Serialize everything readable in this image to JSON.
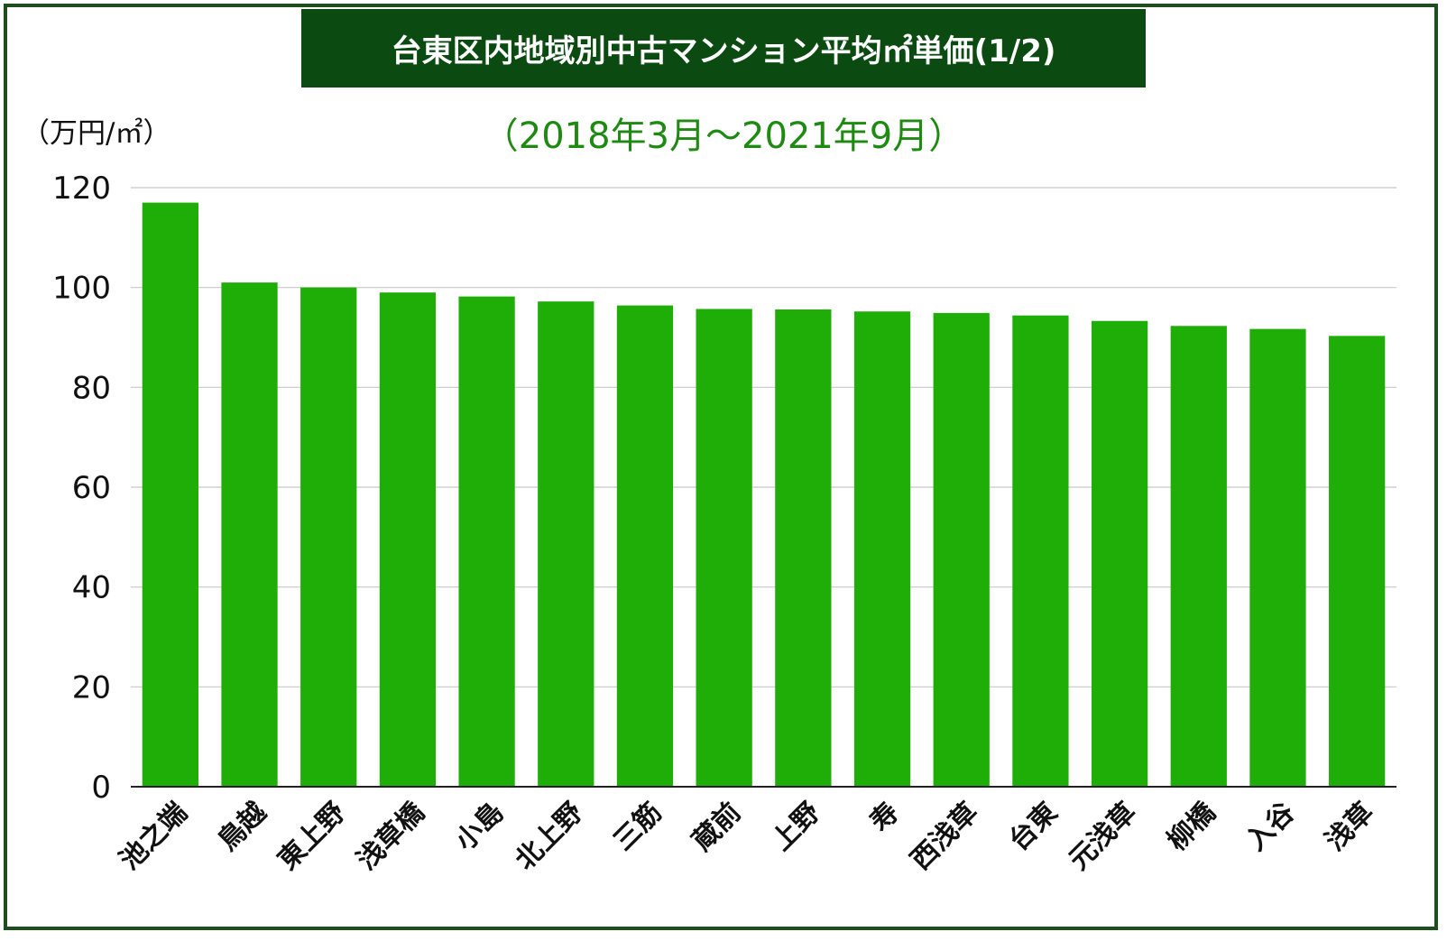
{
  "chart_data": {
    "type": "bar",
    "title": "台東区内地域別中古マンション平均㎡単価(1/2)",
    "subtitle": "（2018年3月〜2021年9月）",
    "ylabel": "（万円/㎡）",
    "xlabel": "",
    "ylim": [
      0,
      120
    ],
    "yticks": [
      0,
      20,
      40,
      60,
      80,
      100,
      120
    ],
    "grid": true,
    "bar_color": "#1fad08",
    "categories": [
      "池之端",
      "鳥越",
      "東上野",
      "浅草橋",
      "小島",
      "北上野",
      "三筋",
      "蔵前",
      "上野",
      "寿",
      "西浅草",
      "台東",
      "元浅草",
      "柳橋",
      "入谷",
      "浅草"
    ],
    "values": [
      117,
      101,
      100,
      99,
      98.2,
      97.2,
      96.4,
      95.7,
      95.6,
      95.2,
      94.9,
      94.4,
      93.3,
      92.3,
      91.7,
      90.3
    ]
  }
}
